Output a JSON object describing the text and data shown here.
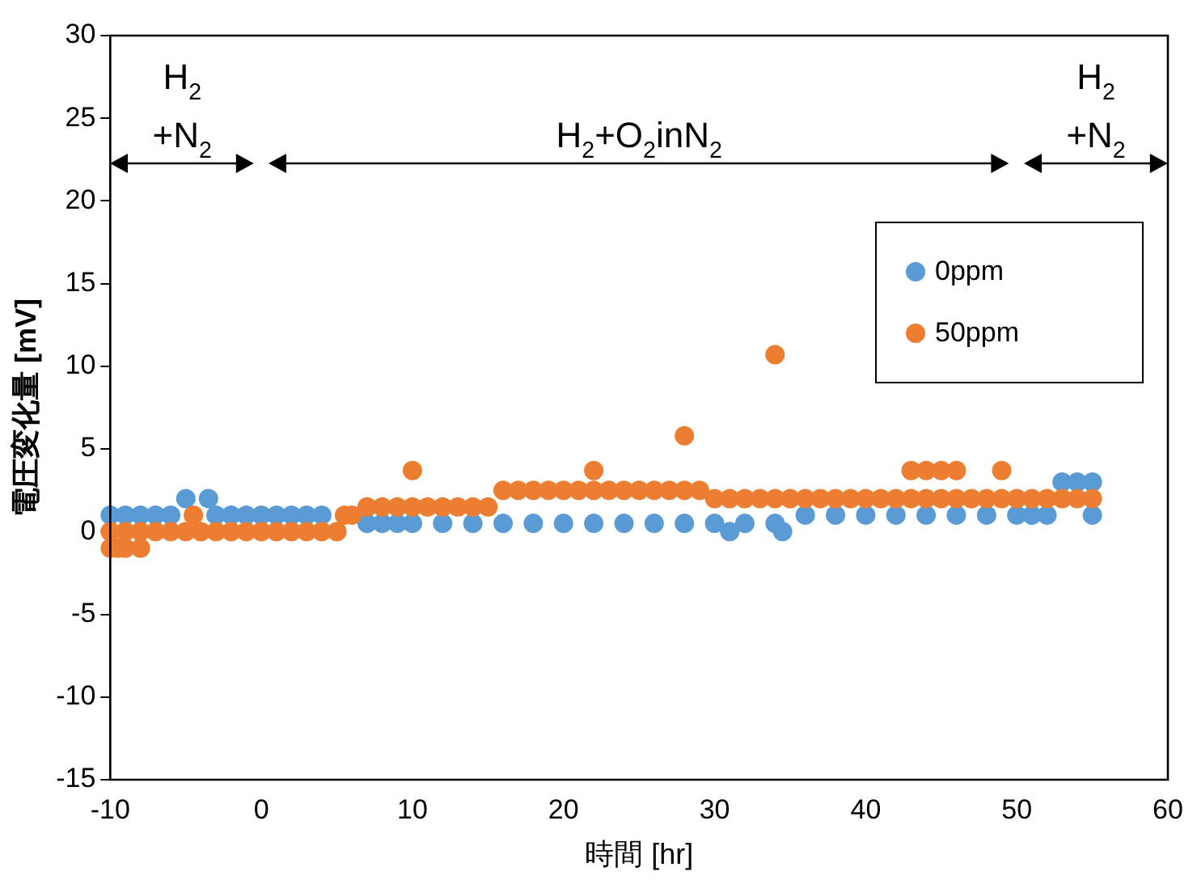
{
  "chart_data": {
    "type": "scatter",
    "xlabel": "時間 [hr]",
    "ylabel": "電圧変化量 [mV]",
    "xlim": [
      -10,
      60
    ],
    "xticks": [
      -10,
      0,
      10,
      20,
      30,
      40,
      50,
      60
    ],
    "ylim": [
      -15,
      30
    ],
    "yticks": [
      -15,
      -10,
      -5,
      0,
      5,
      10,
      15,
      20,
      25,
      30
    ],
    "grid": false,
    "legend": "top right",
    "marker": "circle",
    "annotations": [
      "H$_{2}$\n+N$_{2}$",
      "H$_{2}$+O$_{2}$inN$_{2}$",
      "H$_{2}$\n+N$_{2}$"
    ],
    "series": [
      {
        "name": "0ppm",
        "color": "#5b9bd5",
        "x": [
          -10,
          -9,
          -8,
          -7,
          -6,
          -5,
          -3.5,
          -3,
          -2,
          -1,
          0,
          1,
          2,
          3,
          4,
          7,
          8,
          9,
          10,
          12,
          14,
          16,
          18,
          20,
          22,
          24,
          26,
          28,
          30,
          31,
          32,
          34,
          34.5,
          36,
          38,
          40,
          42,
          44,
          46,
          48,
          50,
          51,
          52,
          53,
          54,
          55,
          55
        ],
        "values": [
          1,
          1,
          1,
          1,
          1,
          2,
          2,
          1,
          1,
          1,
          1,
          1,
          1,
          1,
          1,
          0.5,
          0.5,
          0.5,
          0.5,
          0.5,
          0.5,
          0.5,
          0.5,
          0.5,
          0.5,
          0.5,
          0.5,
          0.5,
          0.5,
          0,
          0.5,
          0.5,
          0,
          1,
          1,
          1,
          1,
          1,
          1,
          1,
          1,
          1,
          1,
          3,
          3,
          3,
          1
        ]
      },
      {
        "name": "50ppm",
        "color": "#ed7d31",
        "x": [
          -10,
          -9.5,
          -9,
          -8,
          -10,
          -9,
          -8,
          -7,
          -6,
          -5,
          -4.5,
          -4,
          -3,
          -2,
          -1,
          0,
          1,
          2,
          3,
          4,
          5,
          5.5,
          6,
          7,
          8,
          9,
          10,
          10,
          11,
          12,
          13,
          14,
          15,
          16,
          17,
          18,
          19,
          20,
          21,
          22,
          22,
          23,
          24,
          25,
          26,
          27,
          28,
          28,
          29,
          30,
          31,
          32,
          33,
          34,
          34,
          35,
          36,
          37,
          38,
          39,
          40,
          41,
          42,
          43,
          43,
          44,
          44,
          45,
          45,
          46,
          46,
          47,
          48,
          49,
          49,
          50,
          51,
          52,
          53,
          54,
          55
        ],
        "values": [
          -1,
          -1,
          -1,
          -1,
          0,
          0,
          0,
          0,
          0,
          0,
          1,
          0,
          0,
          0,
          0,
          0,
          0,
          0,
          0,
          0,
          0,
          1,
          1,
          1.5,
          1.5,
          1.5,
          3.7,
          1.5,
          1.5,
          1.5,
          1.5,
          1.5,
          1.5,
          2.5,
          2.5,
          2.5,
          2.5,
          2.5,
          2.5,
          3.7,
          2.5,
          2.5,
          2.5,
          2.5,
          2.5,
          2.5,
          5.8,
          2.5,
          2.5,
          2,
          2,
          2,
          2,
          10.7,
          2,
          2,
          2,
          2,
          2,
          2,
          2,
          2,
          2,
          3.7,
          2,
          3.7,
          2,
          3.7,
          2,
          3.7,
          2,
          2,
          2,
          3.7,
          2,
          2,
          2,
          2,
          2,
          2,
          2
        ]
      }
    ]
  }
}
